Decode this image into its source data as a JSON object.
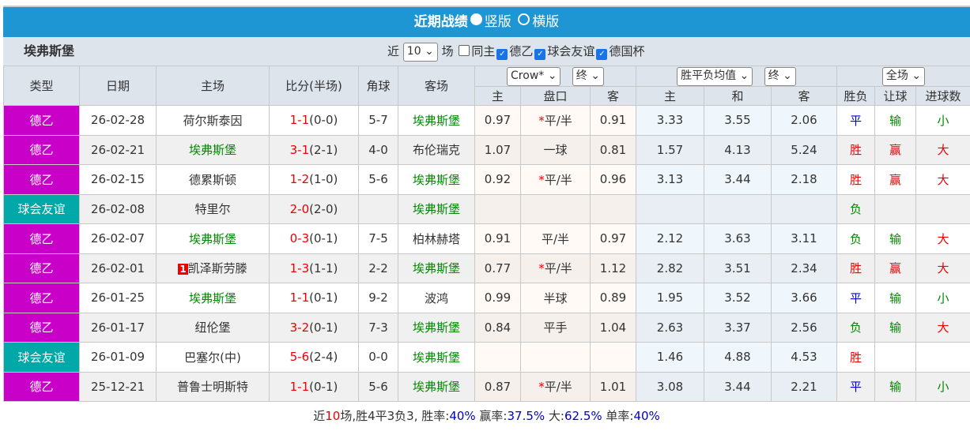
{
  "header": {
    "title": "近期战绩",
    "opt_vertical": "竖版",
    "opt_horizontal": "横版"
  },
  "filter": {
    "team": "埃弗斯堡",
    "near": "近",
    "count": "10",
    "unit": "场",
    "same_home": "同主",
    "leagues": [
      "德乙",
      "球会友谊",
      "德国杯"
    ]
  },
  "columns": {
    "type": "类型",
    "date": "日期",
    "home": "主场",
    "score": "比分(半场)",
    "corner": "角球",
    "away": "客场",
    "odds_company": "Crow*",
    "odds_phase": "终",
    "avg_type": "胜平负均值",
    "avg_phase": "终",
    "scope": "全场",
    "sub": [
      "主",
      "盘口",
      "客",
      "主",
      "和",
      "客",
      "胜负",
      "让球",
      "进球数"
    ]
  },
  "colors": {
    "league_dy": "#c800c8",
    "league_friendly": "#00a8a8",
    "header_blue": "#1e96d4"
  },
  "rows": [
    {
      "league": "德乙",
      "lc": "#c800c8",
      "date": "26-02-28",
      "home": "荷尔斯泰因",
      "hg": false,
      "ft": "1-1",
      "ht": "(0-0)",
      "corner": "5-7",
      "away": "埃弗斯堡",
      "ag": true,
      "o1": "0.97",
      "ah_star": "*",
      "ah": "平/半",
      "o2": "0.91",
      "a1": "3.33",
      "a2": "3.55",
      "a3": "2.06",
      "r": "平",
      "rc": "blue",
      "hc": "输",
      "hcc": "green",
      "ou": "小",
      "ouc": "green"
    },
    {
      "league": "德乙",
      "lc": "#c800c8",
      "date": "26-02-21",
      "home": "埃弗斯堡",
      "hg": true,
      "ft": "3-1",
      "ht": "(2-1)",
      "corner": "4-0",
      "away": "布伦瑞克",
      "ag": false,
      "o1": "1.07",
      "ah_star": "",
      "ah": "一球",
      "o2": "0.81",
      "a1": "1.57",
      "a2": "4.13",
      "a3": "5.24",
      "r": "胜",
      "rc": "red",
      "hc": "赢",
      "hcc": "red",
      "ou": "大",
      "ouc": "red"
    },
    {
      "league": "德乙",
      "lc": "#c800c8",
      "date": "26-02-15",
      "home": "德累斯顿",
      "hg": false,
      "ft": "1-2",
      "ht": "(1-0)",
      "corner": "5-6",
      "away": "埃弗斯堡",
      "ag": true,
      "o1": "0.92",
      "ah_star": "*",
      "ah": "平/半",
      "o2": "0.96",
      "a1": "3.13",
      "a2": "3.44",
      "a3": "2.18",
      "r": "胜",
      "rc": "red",
      "hc": "赢",
      "hcc": "red",
      "ou": "大",
      "ouc": "red"
    },
    {
      "league": "球会友谊",
      "lc": "#00a8a8",
      "date": "26-02-08",
      "home": "特里尔",
      "hg": false,
      "ft": "2-0",
      "ht": "(2-0)",
      "corner": "",
      "away": "埃弗斯堡",
      "ag": true,
      "o1": "",
      "ah_star": "",
      "ah": "",
      "o2": "",
      "a1": "",
      "a2": "",
      "a3": "",
      "r": "负",
      "rc": "green",
      "hc": "",
      "hcc": "green",
      "ou": "",
      "ouc": "green"
    },
    {
      "league": "德乙",
      "lc": "#c800c8",
      "date": "26-02-07",
      "home": "埃弗斯堡",
      "hg": true,
      "ft": "0-3",
      "ht": "(0-1)",
      "corner": "7-5",
      "away": "柏林赫塔",
      "ag": false,
      "o1": "0.91",
      "ah_star": "",
      "ah": "平/半",
      "o2": "0.97",
      "a1": "2.12",
      "a2": "3.63",
      "a3": "3.11",
      "r": "负",
      "rc": "green",
      "hc": "输",
      "hcc": "green",
      "ou": "大",
      "ouc": "red"
    },
    {
      "league": "德乙",
      "lc": "#c800c8",
      "date": "26-02-01",
      "home": "凯泽斯劳滕",
      "badge": "1",
      "hg": false,
      "ft": "1-3",
      "ht": "(1-1)",
      "corner": "2-2",
      "away": "埃弗斯堡",
      "ag": true,
      "o1": "0.77",
      "ah_star": "*",
      "ah": "平/半",
      "o2": "1.12",
      "a1": "2.82",
      "a2": "3.51",
      "a3": "2.34",
      "r": "胜",
      "rc": "red",
      "hc": "赢",
      "hcc": "red",
      "ou": "大",
      "ouc": "red"
    },
    {
      "league": "德乙",
      "lc": "#c800c8",
      "date": "26-01-25",
      "home": "埃弗斯堡",
      "hg": true,
      "ft": "1-1",
      "ht": "(0-1)",
      "corner": "9-2",
      "away": "波鸿",
      "ag": false,
      "o1": "0.99",
      "ah_star": "",
      "ah": "半球",
      "o2": "0.89",
      "a1": "1.95",
      "a2": "3.52",
      "a3": "3.66",
      "r": "平",
      "rc": "blue",
      "hc": "输",
      "hcc": "green",
      "ou": "小",
      "ouc": "green"
    },
    {
      "league": "德乙",
      "lc": "#c800c8",
      "date": "26-01-17",
      "home": "纽伦堡",
      "hg": false,
      "ft": "3-2",
      "ht": "(0-1)",
      "corner": "7-3",
      "away": "埃弗斯堡",
      "ag": true,
      "o1": "0.84",
      "ah_star": "",
      "ah": "平手",
      "o2": "1.04",
      "a1": "2.63",
      "a2": "3.37",
      "a3": "2.56",
      "r": "负",
      "rc": "green",
      "hc": "输",
      "hcc": "green",
      "ou": "大",
      "ouc": "red"
    },
    {
      "league": "球会友谊",
      "lc": "#00a8a8",
      "date": "26-01-09",
      "home": "巴塞尔(中)",
      "hg": false,
      "ft": "5-6",
      "ht": "(2-4)",
      "corner": "0-0",
      "away": "埃弗斯堡",
      "ag": true,
      "o1": "",
      "ah_star": "",
      "ah": "",
      "o2": "",
      "a1": "1.46",
      "a2": "4.88",
      "a3": "4.53",
      "r": "胜",
      "rc": "red",
      "hc": "",
      "hcc": "green",
      "ou": "",
      "ouc": "green"
    },
    {
      "league": "德乙",
      "lc": "#c800c8",
      "date": "25-12-21",
      "home": "普鲁士明斯特",
      "hg": false,
      "ft": "1-1",
      "ht": "(0-1)",
      "corner": "5-6",
      "away": "埃弗斯堡",
      "ag": true,
      "o1": "0.87",
      "ah_star": "*",
      "ah": "平/半",
      "o2": "1.01",
      "a1": "3.08",
      "a2": "3.44",
      "a3": "2.21",
      "r": "平",
      "rc": "blue",
      "hc": "输",
      "hcc": "green",
      "ou": "小",
      "ouc": "green"
    }
  ],
  "footer": {
    "p1": "近",
    "n": "10",
    "p2": "场,胜4平3负3, 胜率:",
    "win": "40%",
    "p3": " 赢率:",
    "cover": "37.5%",
    "p4": " 大:",
    "over": "62.5%",
    "p5": " 单率:",
    "odd": "40%"
  }
}
